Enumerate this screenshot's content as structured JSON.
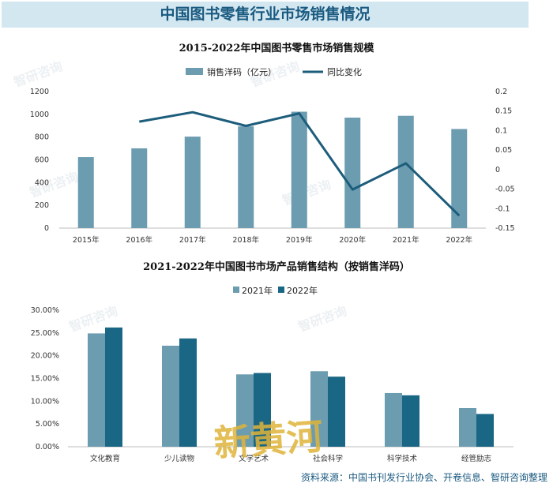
{
  "banner_title": "中国图书零售行业市场销售情况",
  "watermark": "智研咨询",
  "handwritten_stamp": "新黄河",
  "source_note": "资料来源：中国书刊发行业协会、开卷信息、智研咨询整理",
  "colors": {
    "bar_main": "#6c9cb0",
    "line": "#1d5d7c",
    "bar_2022": "#1a6685",
    "banner_bg": "#d3e7f1"
  },
  "chart_data": [
    {
      "type": "bar+line",
      "title": "2015-2022年中国图书零售市场销售规模",
      "categories": [
        "2015年",
        "2016年",
        "2017年",
        "2018年",
        "2019年",
        "2020年",
        "2021年",
        "2022年"
      ],
      "series": [
        {
          "name": "销售洋码（亿元）",
          "type": "bar",
          "axis": "left",
          "values": [
            624,
            701,
            804,
            894,
            1023,
            971,
            987,
            871
          ]
        },
        {
          "name": "同比变化",
          "type": "line",
          "axis": "right",
          "values": [
            null,
            0.123,
            0.147,
            0.112,
            0.144,
            -0.051,
            0.016,
            -0.118
          ]
        }
      ],
      "ylim_left": [
        0,
        1200
      ],
      "ylim_right": [
        -0.15,
        0.2
      ],
      "yticks_left": [
        "0",
        "200",
        "400",
        "600",
        "800",
        "1000",
        "1200"
      ],
      "yticks_right": [
        "0.2",
        "0.15",
        "0.1",
        "0.05",
        "0",
        "-0.05",
        "-0.1",
        "-0.15"
      ],
      "legend": "top-center",
      "grid": false
    },
    {
      "type": "bar",
      "title": "2021-2022年中国图书市场产品销售结构（按销售洋码）",
      "categories": [
        "文化教育",
        "少儿读物",
        "文学艺术",
        "社会科学",
        "科学技术",
        "经管励志"
      ],
      "series": [
        {
          "name": "2021年",
          "values": [
            24.9,
            22.2,
            15.9,
            16.6,
            11.8,
            8.5
          ]
        },
        {
          "name": "2022年",
          "values": [
            26.2,
            23.8,
            16.2,
            15.4,
            11.3,
            7.2
          ]
        }
      ],
      "ylim": [
        0,
        30
      ],
      "yticks": [
        "0.00%",
        "5.00%",
        "10.00%",
        "15.00%",
        "20.00%",
        "25.00%",
        "30.00%"
      ],
      "legend": "top-center",
      "grid": false
    }
  ]
}
